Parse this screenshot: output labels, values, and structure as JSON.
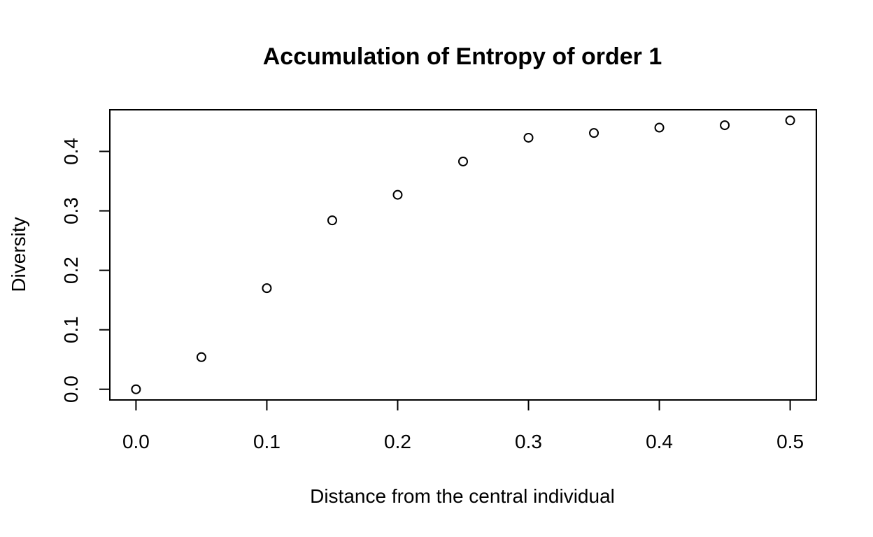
{
  "chart_data": {
    "type": "scatter",
    "title": "Accumulation of Entropy of order 1",
    "xlabel": "Distance from the central individual",
    "ylabel": "Diversity",
    "x": [
      0.0,
      0.05,
      0.1,
      0.15,
      0.2,
      0.25,
      0.3,
      0.35,
      0.4,
      0.45,
      0.5
    ],
    "y": [
      0.0,
      0.054,
      0.17,
      0.284,
      0.327,
      0.383,
      0.423,
      0.431,
      0.44,
      0.444,
      0.452
    ],
    "xlim": [
      -0.02,
      0.52
    ],
    "ylim": [
      -0.018,
      0.47
    ],
    "x_ticks": [
      0.0,
      0.1,
      0.2,
      0.3,
      0.4,
      0.5
    ],
    "x_tick_labels": [
      "0.0",
      "0.1",
      "0.2",
      "0.3",
      "0.4",
      "0.5"
    ],
    "y_ticks": [
      0.0,
      0.1,
      0.2,
      0.3,
      0.4
    ],
    "y_tick_labels": [
      "0.0",
      "0.1",
      "0.2",
      "0.3",
      "0.4"
    ],
    "grid": false,
    "legend": "none",
    "marker": "open-circle",
    "marker_color": "#000000"
  }
}
